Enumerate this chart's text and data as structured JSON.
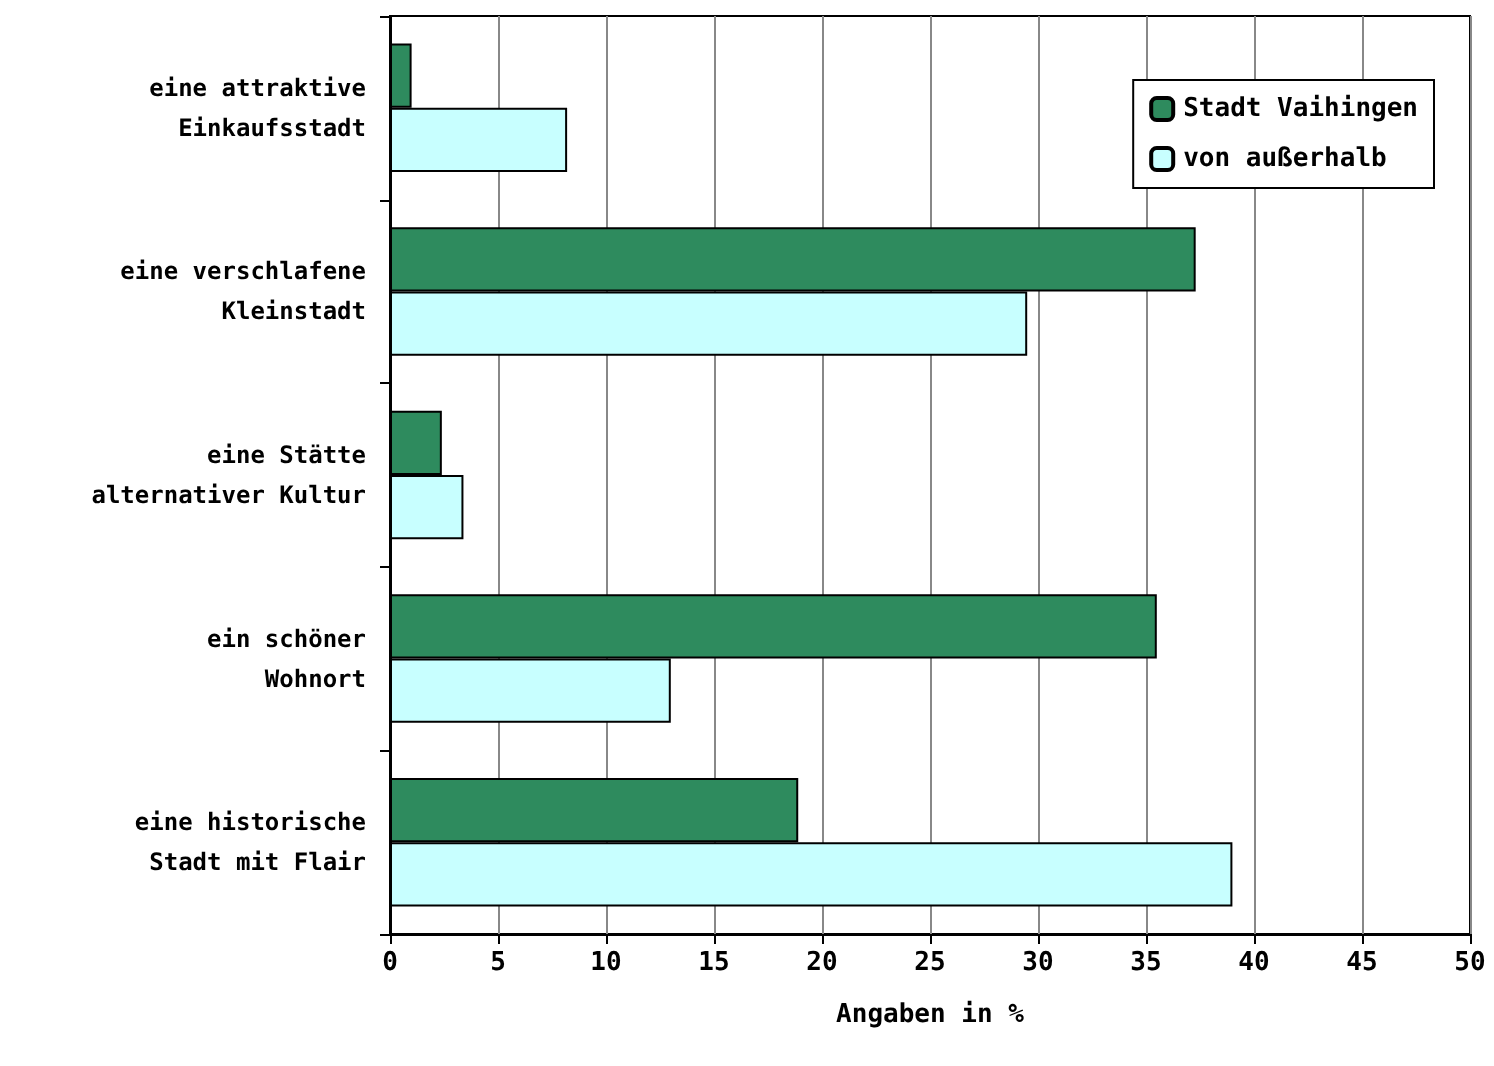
{
  "chart_data": {
    "type": "bar",
    "orientation": "horizontal",
    "xlabel": "Angaben in %",
    "categories": [
      "eine attraktive\nEinkaufsstadt",
      "eine verschlafene\nKleinstadt",
      "eine Stätte\nalternativer Kultur",
      "ein schöner\nWohnort",
      "eine historische\nStadt mit Flair"
    ],
    "series": [
      {
        "name": "Stadt Vaihingen",
        "color": "#2e8b5e",
        "values": [
          1.0,
          37.3,
          2.4,
          35.5,
          18.9
        ]
      },
      {
        "name": "von außerhalb",
        "color": "#c8ffff",
        "values": [
          8.2,
          29.5,
          3.4,
          13.0,
          39.0
        ]
      }
    ],
    "xlim": [
      0,
      50
    ],
    "xticks": [
      0,
      5,
      10,
      15,
      20,
      25,
      30,
      35,
      40,
      45,
      50
    ],
    "grid": "x",
    "legend": "top right"
  }
}
